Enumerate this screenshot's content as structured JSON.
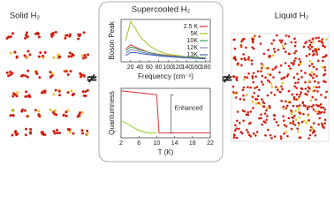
{
  "labels": {
    "solid": "Solid H₂",
    "liquid": "Liquid H₂",
    "title": "Supercooled H₂",
    "not_left": "≄",
    "not_right": "≄"
  },
  "chart_data": [
    {
      "type": "line",
      "ylabel": "Boson Peak",
      "xlabel": "Frequency (cm⁻¹)",
      "x": [
        10,
        20,
        30,
        40,
        60,
        80,
        100,
        140,
        180
      ],
      "xlim": [
        0,
        190
      ],
      "xticks": [
        20,
        40,
        60,
        80,
        100,
        120,
        140,
        160,
        180
      ],
      "ylim": [
        0,
        1
      ],
      "yticks": [],
      "legend": "upper right",
      "series": [
        {
          "name": "2.5 K",
          "color": "#e03030",
          "values": [
            0.3,
            0.4,
            0.35,
            0.3,
            0.22,
            0.18,
            0.15,
            0.12,
            0.1
          ]
        },
        {
          "name": "5K",
          "color": "#a0c020",
          "values": [
            0.5,
            0.95,
            0.8,
            0.6,
            0.38,
            0.25,
            0.18,
            0.12,
            0.1
          ]
        },
        {
          "name": "10K",
          "color": "#30a060",
          "values": [
            0.25,
            0.35,
            0.32,
            0.28,
            0.22,
            0.17,
            0.14,
            0.11,
            0.09
          ]
        },
        {
          "name": "12K",
          "color": "#8a80c0",
          "values": [
            0.2,
            0.28,
            0.27,
            0.24,
            0.19,
            0.15,
            0.13,
            0.1,
            0.08
          ]
        },
        {
          "name": "13K",
          "color": "#4060c0",
          "values": [
            0.15,
            0.22,
            0.22,
            0.2,
            0.17,
            0.14,
            0.12,
            0.09,
            0.07
          ]
        }
      ]
    },
    {
      "type": "line",
      "ylabel": "Quantumness",
      "xlabel": "T (K)",
      "annotation": "Enhanced",
      "x": [
        2,
        4,
        6,
        8,
        10,
        10.5,
        14,
        18,
        22
      ],
      "xlim": [
        2,
        22
      ],
      "xticks": [
        2,
        6,
        10,
        14,
        18,
        22
      ],
      "ylim": [
        0,
        1
      ],
      "yticks": [],
      "series": [
        {
          "color": "#e03030",
          "values": [
            0.95,
            0.93,
            0.91,
            0.89,
            0.87,
            0.1,
            0.1,
            0.1,
            0.1
          ]
        },
        {
          "color": "#8cd020",
          "values": [
            0.35,
            0.25,
            0.15,
            0.1,
            0.1,
            null,
            null,
            null,
            null
          ]
        }
      ]
    }
  ]
}
